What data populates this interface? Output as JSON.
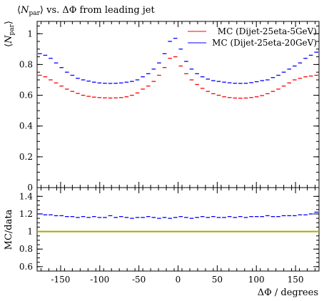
{
  "chart_data": [
    {
      "type": "line",
      "title": "⟨N_par⟩ vs. ΔΦ from leading jet",
      "title_parts": {
        "main": "N",
        "sub": "par",
        "rest": " vs. ΔΦ from leading jet"
      },
      "ylabel_parts": {
        "main": "N",
        "sub": "par"
      },
      "ylim": [
        0,
        1.08
      ],
      "xlim": [
        -180,
        180
      ],
      "yticks": [
        "0",
        "0.2",
        "0.4",
        "0.6",
        "0.8",
        "1"
      ],
      "yticks_values": [
        0,
        0.2,
        0.4,
        0.6,
        0.8,
        1.0
      ],
      "legend_position": "top-right",
      "grid": false,
      "bin_width_deg": 5,
      "series": [
        {
          "name": "MC (Dijet-25eta-5GeV)",
          "color": "#ff0000",
          "values": [
            0.73,
            0.72,
            0.7,
            0.68,
            0.66,
            0.64,
            0.625,
            0.612,
            0.6,
            0.593,
            0.588,
            0.585,
            0.583,
            0.582,
            0.583,
            0.585,
            0.59,
            0.6,
            0.615,
            0.64,
            0.66,
            0.69,
            0.73,
            0.78,
            0.84,
            0.85,
            0.79,
            0.74,
            0.7,
            0.67,
            0.645,
            0.625,
            0.61,
            0.6,
            0.59,
            0.585,
            0.582,
            0.581,
            0.582,
            0.585,
            0.59,
            0.598,
            0.61,
            0.625,
            0.64,
            0.66,
            0.68,
            0.7,
            0.71,
            0.72,
            0.725,
            0.73
          ]
        },
        {
          "name": "MC (Dijet-25eta-20GeV)",
          "color": "#0000ff",
          "values": [
            0.87,
            0.86,
            0.84,
            0.81,
            0.78,
            0.75,
            0.73,
            0.71,
            0.7,
            0.692,
            0.685,
            0.68,
            0.678,
            0.677,
            0.678,
            0.68,
            0.685,
            0.69,
            0.7,
            0.72,
            0.74,
            0.77,
            0.81,
            0.87,
            0.95,
            0.97,
            0.9,
            0.82,
            0.77,
            0.74,
            0.72,
            0.705,
            0.695,
            0.69,
            0.685,
            0.681,
            0.678,
            0.677,
            0.678,
            0.682,
            0.688,
            0.695,
            0.7,
            0.715,
            0.73,
            0.75,
            0.77,
            0.79,
            0.81,
            0.84,
            0.86,
            0.88
          ]
        }
      ]
    },
    {
      "type": "line",
      "ylabel": "MC/data",
      "xlabel": "ΔΦ / degrees",
      "ylim": [
        0.55,
        1.5
      ],
      "xlim": [
        -180,
        180
      ],
      "yticks": [
        "0.6",
        "0.8",
        "1",
        "1.2",
        "1.4"
      ],
      "yticks_values": [
        0.6,
        0.8,
        1.0,
        1.2,
        1.4
      ],
      "xticks": [
        "-150",
        "-100",
        "-50",
        "0",
        "50",
        "100",
        "150"
      ],
      "xticks_values": [
        -150,
        -100,
        -50,
        0,
        50,
        100,
        150
      ],
      "reference_line": {
        "y": 1.0,
        "color": "#aaaa00"
      },
      "series": [
        {
          "color": "#0000ff",
          "values": [
            1.2,
            1.19,
            1.19,
            1.18,
            1.18,
            1.17,
            1.17,
            1.16,
            1.17,
            1.16,
            1.17,
            1.16,
            1.16,
            1.18,
            1.16,
            1.17,
            1.16,
            1.15,
            1.16,
            1.16,
            1.17,
            1.16,
            1.15,
            1.16,
            1.15,
            1.16,
            1.17,
            1.16,
            1.15,
            1.16,
            1.17,
            1.16,
            1.17,
            1.16,
            1.16,
            1.17,
            1.16,
            1.17,
            1.16,
            1.17,
            1.17,
            1.17,
            1.18,
            1.17,
            1.17,
            1.18,
            1.18,
            1.18,
            1.19,
            1.19,
            1.2,
            1.22
          ]
        }
      ]
    }
  ]
}
